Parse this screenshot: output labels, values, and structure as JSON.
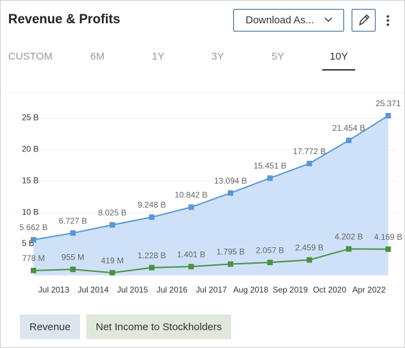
{
  "header": {
    "title": "Revenue & Profits",
    "download": "Download As..."
  },
  "tabs": [
    {
      "label": "CUSTOM"
    },
    {
      "label": "6M"
    },
    {
      "label": "1Y"
    },
    {
      "label": "3Y"
    },
    {
      "label": "5Y"
    },
    {
      "label": "10Y",
      "active": true
    }
  ],
  "chart_data": {
    "type": "line",
    "categories": [
      null,
      "Jul 2013",
      "Jul 2014",
      "Jul 2015",
      "Jul 2016",
      "Jul 2017",
      "Aug 2018",
      "Sep 2019",
      "Oct 2020",
      "Apr 2022"
    ],
    "series": [
      {
        "name": "Revenue",
        "color": "#5b97d4",
        "area_color": "#cfe1f8",
        "values": [
          5.662,
          6.727,
          8.025,
          9.248,
          10.842,
          13.094,
          15.451,
          17.772,
          21.454,
          25.371
        ],
        "value_labels": [
          "5.662 B",
          "6.727 B",
          "8.025 B",
          "9.248 B",
          "10.842 B",
          "13.094 B",
          "15.451 B",
          "17.772 B",
          "21.454 B",
          "25.371"
        ]
      },
      {
        "name": "Net Income to Stockholders",
        "color": "#4b9142",
        "values": [
          0.778,
          0.955,
          0.419,
          1.228,
          1.401,
          1.795,
          2.057,
          2.459,
          4.202,
          4.169
        ],
        "value_labels": [
          "778 M",
          "955 M",
          "419 M",
          "1.228 B",
          "1.401 B",
          "1.795 B",
          "2.057 B",
          "2.459 B",
          "4.202 B",
          "4.169 B"
        ]
      }
    ],
    "ylim": [
      0,
      29.5
    ],
    "yticks": [
      {
        "value": 5,
        "label": "5 B"
      },
      {
        "value": 10,
        "label": "10 B"
      },
      {
        "value": 15,
        "label": "15 B"
      },
      {
        "value": 20,
        "label": "20 B"
      },
      {
        "value": 25,
        "label": "25 B"
      }
    ],
    "grid": true
  }
}
